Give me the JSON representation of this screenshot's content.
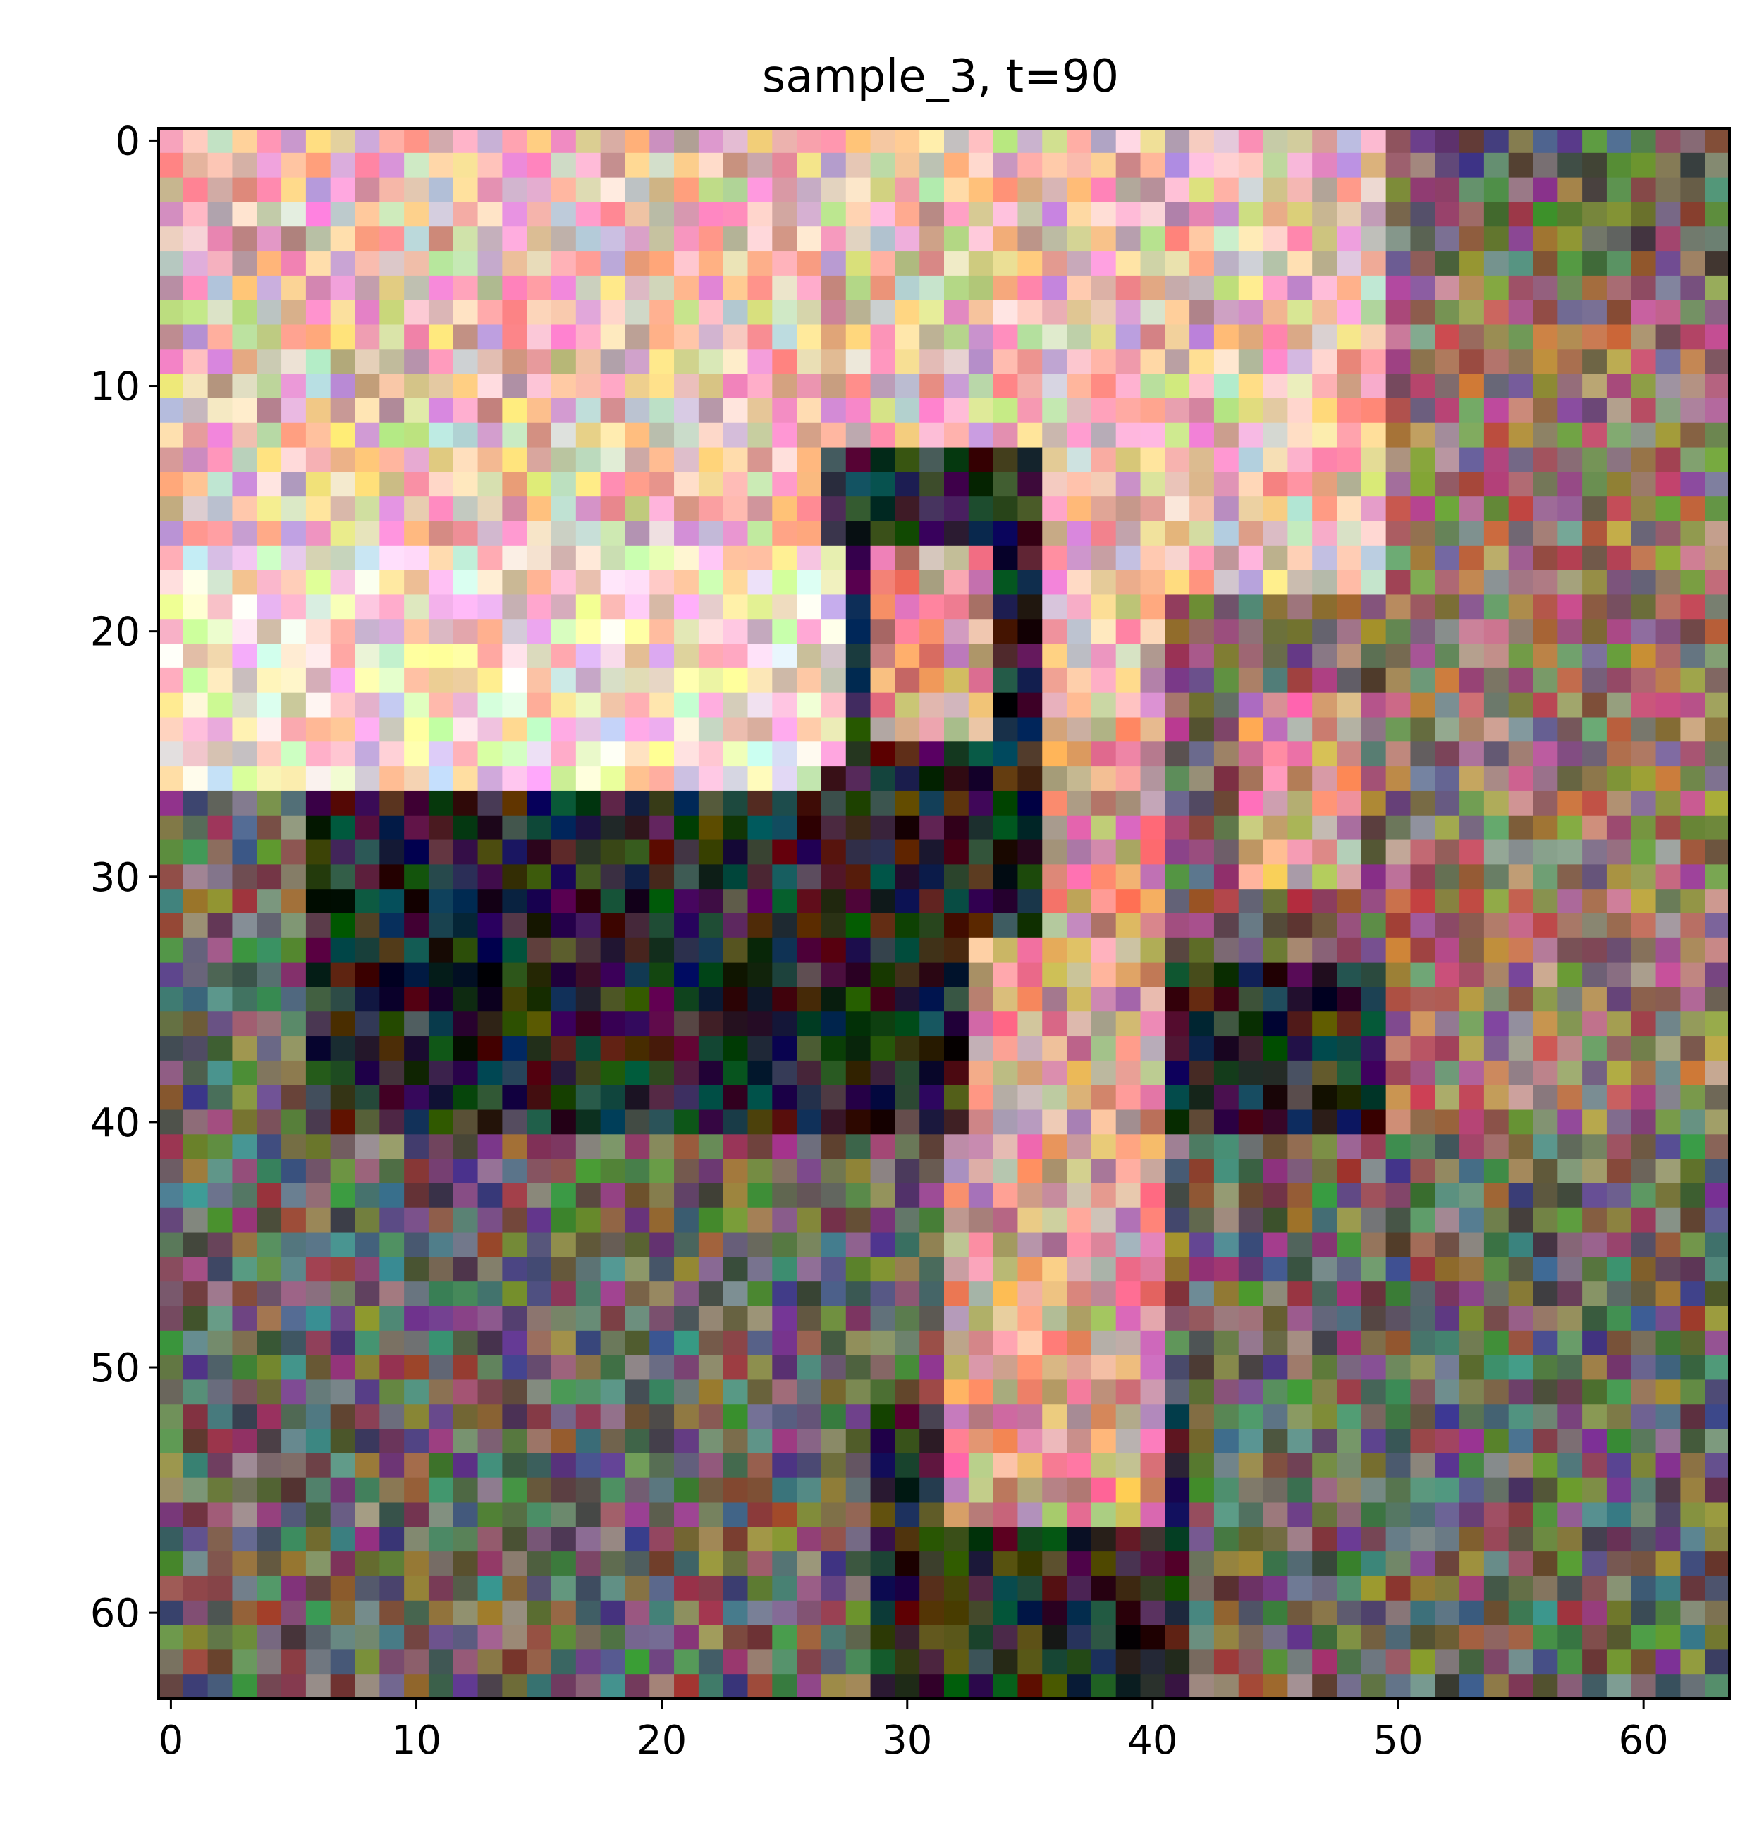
{
  "title": "sample_3, t=90",
  "image": {
    "grid_size": 64,
    "description_free": true
  },
  "axes": {
    "xticks": [
      "0",
      "10",
      "20",
      "30",
      "40",
      "50",
      "60"
    ],
    "yticks": [
      "0",
      "10",
      "20",
      "30",
      "40",
      "50",
      "60"
    ],
    "xlim": [
      -0.5,
      63.5
    ],
    "ylim": [
      63.5,
      -0.5
    ]
  },
  "colors": {
    "sky_light": "#e6b8ad",
    "sky_bright": "#f8dcc6",
    "dark": "#2e2a2b",
    "ground": "#6e6760",
    "skin": "#d99a8a"
  }
}
